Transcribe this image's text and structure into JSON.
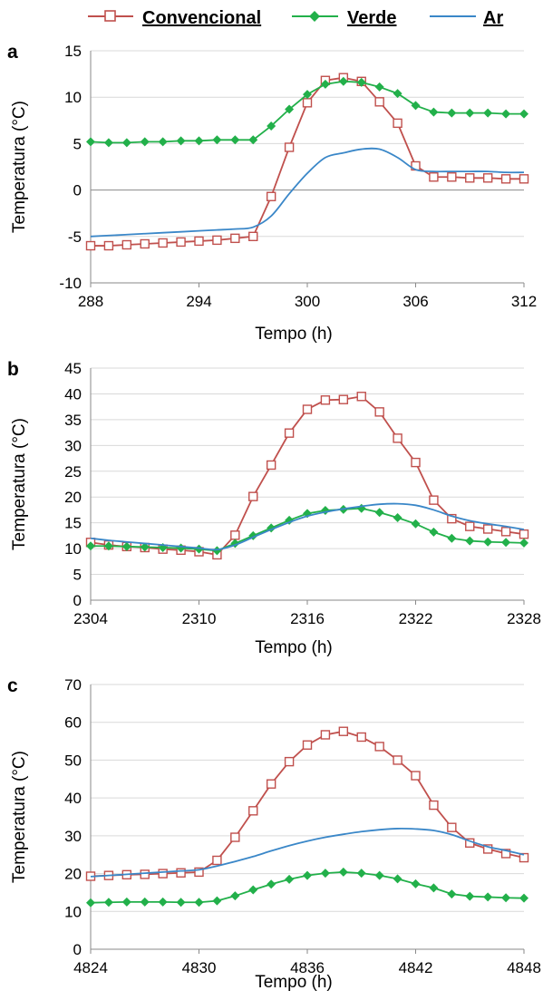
{
  "legend": [
    {
      "name": "Convencional",
      "color": "#c0504d",
      "marker": "open-square"
    },
    {
      "name": "Verde",
      "color": "#22b04a",
      "marker": "filled-diamond"
    },
    {
      "name": "Ar",
      "color": "#3a87c8",
      "marker": "none"
    }
  ],
  "chart_data": [
    {
      "panel": "a",
      "type": "line",
      "xlabel": "Tempo (h)",
      "ylabel": "Temperatura (°C)",
      "xlim": [
        288,
        312
      ],
      "ylim": [
        -10,
        15
      ],
      "xticks": [
        288,
        294,
        300,
        306,
        312
      ],
      "yticks": [
        -10,
        -5,
        0,
        5,
        10,
        15
      ],
      "grid": "horizontal",
      "x": [
        288,
        289,
        290,
        291,
        292,
        293,
        294,
        295,
        296,
        297,
        298,
        299,
        300,
        301,
        302,
        303,
        304,
        305,
        306,
        307,
        308,
        309,
        310,
        311,
        312
      ],
      "series": [
        {
          "name": "Convencional",
          "values": [
            -6.0,
            -6.0,
            -5.9,
            -5.8,
            -5.7,
            -5.6,
            -5.5,
            -5.4,
            -5.2,
            -5.0,
            -0.7,
            4.6,
            9.4,
            11.8,
            12.1,
            11.7,
            9.5,
            7.2,
            2.6,
            1.4,
            1.4,
            1.3,
            1.3,
            1.2,
            1.2
          ]
        },
        {
          "name": "Verde",
          "values": [
            5.2,
            5.1,
            5.1,
            5.2,
            5.2,
            5.3,
            5.3,
            5.4,
            5.4,
            5.4,
            6.9,
            8.7,
            10.3,
            11.4,
            11.7,
            11.6,
            11.1,
            10.4,
            9.1,
            8.4,
            8.3,
            8.3,
            8.3,
            8.2,
            8.2
          ]
        },
        {
          "name": "Ar",
          "values": [
            -5.0,
            -4.9,
            -4.8,
            -4.7,
            -4.6,
            -4.5,
            -4.4,
            -4.3,
            -4.2,
            -4.0,
            -2.8,
            -0.4,
            1.8,
            3.5,
            4.0,
            4.4,
            4.4,
            3.5,
            2.2,
            2.0,
            2.0,
            2.0,
            2.0,
            1.9,
            1.9
          ]
        }
      ]
    },
    {
      "panel": "b",
      "type": "line",
      "xlabel": "Tempo (h)",
      "ylabel": "Temperatura (°C)",
      "xlim": [
        2304,
        2328
      ],
      "ylim": [
        0,
        45
      ],
      "xticks": [
        2304,
        2310,
        2316,
        2322,
        2328
      ],
      "yticks": [
        0,
        5,
        10,
        15,
        20,
        25,
        30,
        35,
        40,
        45
      ],
      "grid": "horizontal",
      "x": [
        2304,
        2305,
        2306,
        2307,
        2308,
        2309,
        2310,
        2311,
        2312,
        2313,
        2314,
        2315,
        2316,
        2317,
        2318,
        2319,
        2320,
        2321,
        2322,
        2323,
        2324,
        2325,
        2326,
        2327,
        2328
      ],
      "series": [
        {
          "name": "Convencional",
          "values": [
            11.2,
            10.7,
            10.4,
            10.2,
            9.9,
            9.7,
            9.4,
            8.8,
            12.6,
            20.1,
            26.2,
            32.4,
            37.0,
            38.8,
            38.9,
            39.5,
            36.5,
            31.4,
            26.7,
            19.4,
            15.8,
            14.3,
            13.8,
            13.3,
            12.8
          ]
        },
        {
          "name": "Verde",
          "values": [
            10.5,
            10.5,
            10.4,
            10.3,
            10.2,
            10.1,
            9.9,
            9.6,
            11.0,
            12.5,
            14.0,
            15.5,
            16.8,
            17.4,
            17.6,
            17.8,
            17.0,
            16.0,
            14.8,
            13.2,
            12.0,
            11.5,
            11.3,
            11.2,
            11.1
          ]
        },
        {
          "name": "Ar",
          "values": [
            12.0,
            11.6,
            11.3,
            11.0,
            10.7,
            10.4,
            10.1,
            9.8,
            10.7,
            12.2,
            13.7,
            15.1,
            16.3,
            17.1,
            17.7,
            18.2,
            18.6,
            18.7,
            18.4,
            17.5,
            16.3,
            15.4,
            14.8,
            14.3,
            13.7
          ]
        }
      ]
    },
    {
      "panel": "c",
      "type": "line",
      "xlabel": "Tempo (h)",
      "ylabel": "Temperatura (°C)",
      "xlim": [
        4824,
        4848
      ],
      "ylim": [
        0,
        70
      ],
      "xticks": [
        4824,
        4830,
        4836,
        4842,
        4848
      ],
      "yticks": [
        0,
        10,
        20,
        30,
        40,
        50,
        60,
        70
      ],
      "grid": "horizontal",
      "x": [
        4824,
        4825,
        4826,
        4827,
        4828,
        4829,
        4830,
        4831,
        4832,
        4833,
        4834,
        4835,
        4836,
        4837,
        4838,
        4839,
        4840,
        4841,
        4842,
        4843,
        4844,
        4845,
        4846,
        4847,
        4848
      ],
      "series": [
        {
          "name": "Convencional",
          "values": [
            19.3,
            19.5,
            19.7,
            19.8,
            20.0,
            20.2,
            20.4,
            23.5,
            29.6,
            36.6,
            43.7,
            49.6,
            54.0,
            56.7,
            57.6,
            56.1,
            53.6,
            50.0,
            45.9,
            38.1,
            32.2,
            28.1,
            26.5,
            25.3,
            24.2
          ]
        },
        {
          "name": "Verde",
          "values": [
            12.3,
            12.4,
            12.5,
            12.5,
            12.5,
            12.4,
            12.4,
            12.8,
            14.1,
            15.7,
            17.2,
            18.5,
            19.5,
            20.1,
            20.4,
            20.1,
            19.5,
            18.6,
            17.3,
            16.2,
            14.6,
            14.0,
            13.8,
            13.6,
            13.5
          ]
        },
        {
          "name": "Ar",
          "values": [
            19.2,
            19.5,
            19.8,
            20.1,
            20.4,
            20.7,
            21.0,
            22.0,
            23.2,
            24.5,
            26.0,
            27.4,
            28.6,
            29.6,
            30.4,
            31.1,
            31.6,
            31.9,
            31.8,
            31.4,
            30.3,
            28.6,
            27.1,
            26.1,
            25.0
          ]
        }
      ]
    }
  ]
}
